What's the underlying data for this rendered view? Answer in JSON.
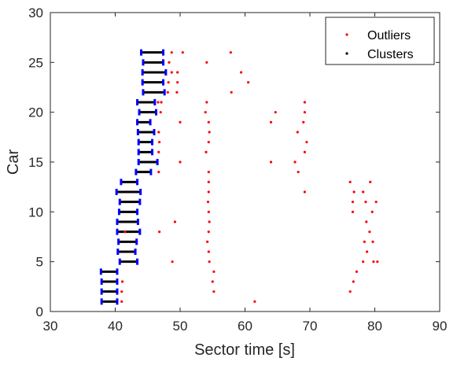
{
  "chart_data": {
    "type": "scatter",
    "xlabel": "Sector time [s]",
    "ylabel": "Car",
    "xlim": [
      30,
      90
    ],
    "ylim": [
      0,
      30
    ],
    "xticks": [
      "30",
      "40",
      "50",
      "60",
      "70",
      "80",
      "90"
    ],
    "yticks": [
      "0",
      "5",
      "10",
      "15",
      "20",
      "25",
      "30"
    ],
    "grid": false,
    "legend_position": "top-right",
    "colors": {
      "outliers": "#ff0000",
      "clusters_bar": "#000000",
      "clusters_cap": "#0000ff",
      "axis": "#262626"
    },
    "series": [
      {
        "name": "Outliers",
        "marker": "dot",
        "points": [
          [
            41.0,
            1
          ],
          [
            61.5,
            1
          ],
          [
            41.0,
            2
          ],
          [
            55.2,
            2
          ],
          [
            76.2,
            2
          ],
          [
            41.1,
            3
          ],
          [
            55.0,
            3
          ],
          [
            76.7,
            3
          ],
          [
            55.2,
            4
          ],
          [
            77.2,
            4
          ],
          [
            48.8,
            5
          ],
          [
            54.5,
            5
          ],
          [
            78.2,
            5
          ],
          [
            79.8,
            5
          ],
          [
            80.4,
            5
          ],
          [
            54.4,
            6
          ],
          [
            78.8,
            6
          ],
          [
            54.2,
            7
          ],
          [
            78.4,
            7
          ],
          [
            79.7,
            7
          ],
          [
            41.5,
            8
          ],
          [
            46.8,
            8
          ],
          [
            54.4,
            8
          ],
          [
            79.2,
            8
          ],
          [
            49.2,
            9
          ],
          [
            54.5,
            9
          ],
          [
            78.7,
            9
          ],
          [
            54.4,
            10
          ],
          [
            76.6,
            10
          ],
          [
            79.6,
            10
          ],
          [
            54.3,
            11
          ],
          [
            76.6,
            11
          ],
          [
            78.6,
            11
          ],
          [
            80.2,
            11
          ],
          [
            54.4,
            12
          ],
          [
            69.2,
            12
          ],
          [
            76.8,
            12
          ],
          [
            78.2,
            12
          ],
          [
            54.4,
            13
          ],
          [
            76.2,
            13
          ],
          [
            79.3,
            13
          ],
          [
            46.7,
            14
          ],
          [
            54.4,
            14
          ],
          [
            68.2,
            14
          ],
          [
            50.0,
            15
          ],
          [
            64.0,
            15
          ],
          [
            67.7,
            15
          ],
          [
            46.7,
            16
          ],
          [
            54.0,
            16
          ],
          [
            69.2,
            16
          ],
          [
            46.8,
            17
          ],
          [
            54.4,
            17
          ],
          [
            69.5,
            17
          ],
          [
            46.7,
            18
          ],
          [
            54.5,
            18
          ],
          [
            68.1,
            18
          ],
          [
            50.0,
            19
          ],
          [
            54.4,
            19
          ],
          [
            64.0,
            19
          ],
          [
            69.0,
            19
          ],
          [
            47.0,
            20
          ],
          [
            53.9,
            20
          ],
          [
            64.7,
            20
          ],
          [
            69.2,
            20
          ],
          [
            46.6,
            21
          ],
          [
            47.1,
            21
          ],
          [
            54.1,
            21
          ],
          [
            69.2,
            21
          ],
          [
            48.1,
            22
          ],
          [
            49.5,
            22
          ],
          [
            57.9,
            22
          ],
          [
            48.2,
            23
          ],
          [
            49.6,
            23
          ],
          [
            60.5,
            23
          ],
          [
            48.7,
            24
          ],
          [
            49.6,
            24
          ],
          [
            59.4,
            24
          ],
          [
            48.3,
            25
          ],
          [
            54.1,
            25
          ],
          [
            48.7,
            26
          ],
          [
            50.4,
            26
          ],
          [
            57.8,
            26
          ]
        ]
      },
      {
        "name": "Clusters",
        "marker": "interval",
        "ranges": [
          {
            "car": 1,
            "min": 37.9,
            "max": 40.3
          },
          {
            "car": 2,
            "min": 37.9,
            "max": 40.3
          },
          {
            "car": 3,
            "min": 37.9,
            "max": 40.3
          },
          {
            "car": 4,
            "min": 37.8,
            "max": 40.3
          },
          {
            "car": 5,
            "min": 40.7,
            "max": 43.4
          },
          {
            "car": 6,
            "min": 40.4,
            "max": 43.1
          },
          {
            "car": 7,
            "min": 40.5,
            "max": 43.3
          },
          {
            "car": 8,
            "min": 40.3,
            "max": 43.8
          },
          {
            "car": 9,
            "min": 40.3,
            "max": 43.5
          },
          {
            "car": 10,
            "min": 40.6,
            "max": 43.4
          },
          {
            "car": 11,
            "min": 40.7,
            "max": 43.8
          },
          {
            "car": 12,
            "min": 40.2,
            "max": 43.9
          },
          {
            "car": 13,
            "min": 40.9,
            "max": 43.4
          },
          {
            "car": 14,
            "min": 43.2,
            "max": 45.5
          },
          {
            "car": 15,
            "min": 43.6,
            "max": 46.5
          },
          {
            "car": 16,
            "min": 43.6,
            "max": 45.7
          },
          {
            "car": 17,
            "min": 43.6,
            "max": 45.7
          },
          {
            "car": 18,
            "min": 43.5,
            "max": 46.0
          },
          {
            "car": 19,
            "min": 43.4,
            "max": 45.4
          },
          {
            "car": 20,
            "min": 43.7,
            "max": 46.3
          },
          {
            "car": 21,
            "min": 43.4,
            "max": 46.1
          },
          {
            "car": 22,
            "min": 44.3,
            "max": 47.6
          },
          {
            "car": 23,
            "min": 44.2,
            "max": 47.4
          },
          {
            "car": 24,
            "min": 44.2,
            "max": 47.8
          },
          {
            "car": 25,
            "min": 44.3,
            "max": 47.4
          },
          {
            "car": 26,
            "min": 44.0,
            "max": 47.4
          }
        ]
      }
    ]
  }
}
